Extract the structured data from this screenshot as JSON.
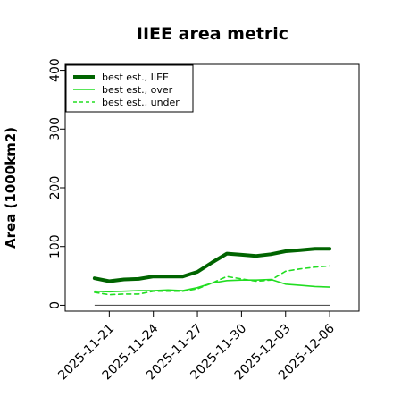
{
  "chart_data": {
    "type": "line",
    "title": "IIEE area metric",
    "xlabel": "",
    "ylabel": "Area (1000km2)",
    "ylim": [
      -10,
      410
    ],
    "xlim": [
      "2025-11-18",
      "2025-12-08"
    ],
    "x_ticks": [
      "2025-11-21",
      "2025-11-24",
      "2025-11-27",
      "2025-11-30",
      "2025-12-03",
      "2025-12-06"
    ],
    "y_ticks": [
      0,
      100,
      200,
      300,
      400
    ],
    "grid": false,
    "legend_position": "top-left",
    "baseline": {
      "y": 0,
      "color": "#555555"
    },
    "x": [
      "2025-11-20",
      "2025-11-21",
      "2025-11-22",
      "2025-11-23",
      "2025-11-24",
      "2025-11-25",
      "2025-11-26",
      "2025-11-27",
      "2025-11-28",
      "2025-11-29",
      "2025-11-30",
      "2025-12-01",
      "2025-12-02",
      "2025-12-03",
      "2025-12-04",
      "2025-12-05",
      "2025-12-06"
    ],
    "series": [
      {
        "name": "best est., IIEE",
        "color": "#006400",
        "style": "solid",
        "width": 4,
        "values": [
          46,
          41,
          44,
          45,
          49,
          49,
          49,
          57,
          73,
          88,
          86,
          84,
          87,
          92,
          94,
          96,
          96
        ]
      },
      {
        "name": "best est., over",
        "color": "#22dd22",
        "style": "solid",
        "width": 1.6,
        "values": [
          24,
          23,
          24,
          25,
          25,
          26,
          25,
          30,
          38,
          42,
          43,
          43,
          44,
          36,
          34,
          32,
          31
        ]
      },
      {
        "name": "best est., under",
        "color": "#22dd22",
        "style": "dashed",
        "width": 1.6,
        "values": [
          22,
          18,
          19,
          19,
          24,
          24,
          24,
          28,
          38,
          49,
          45,
          41,
          43,
          58,
          62,
          65,
          67
        ]
      }
    ]
  }
}
